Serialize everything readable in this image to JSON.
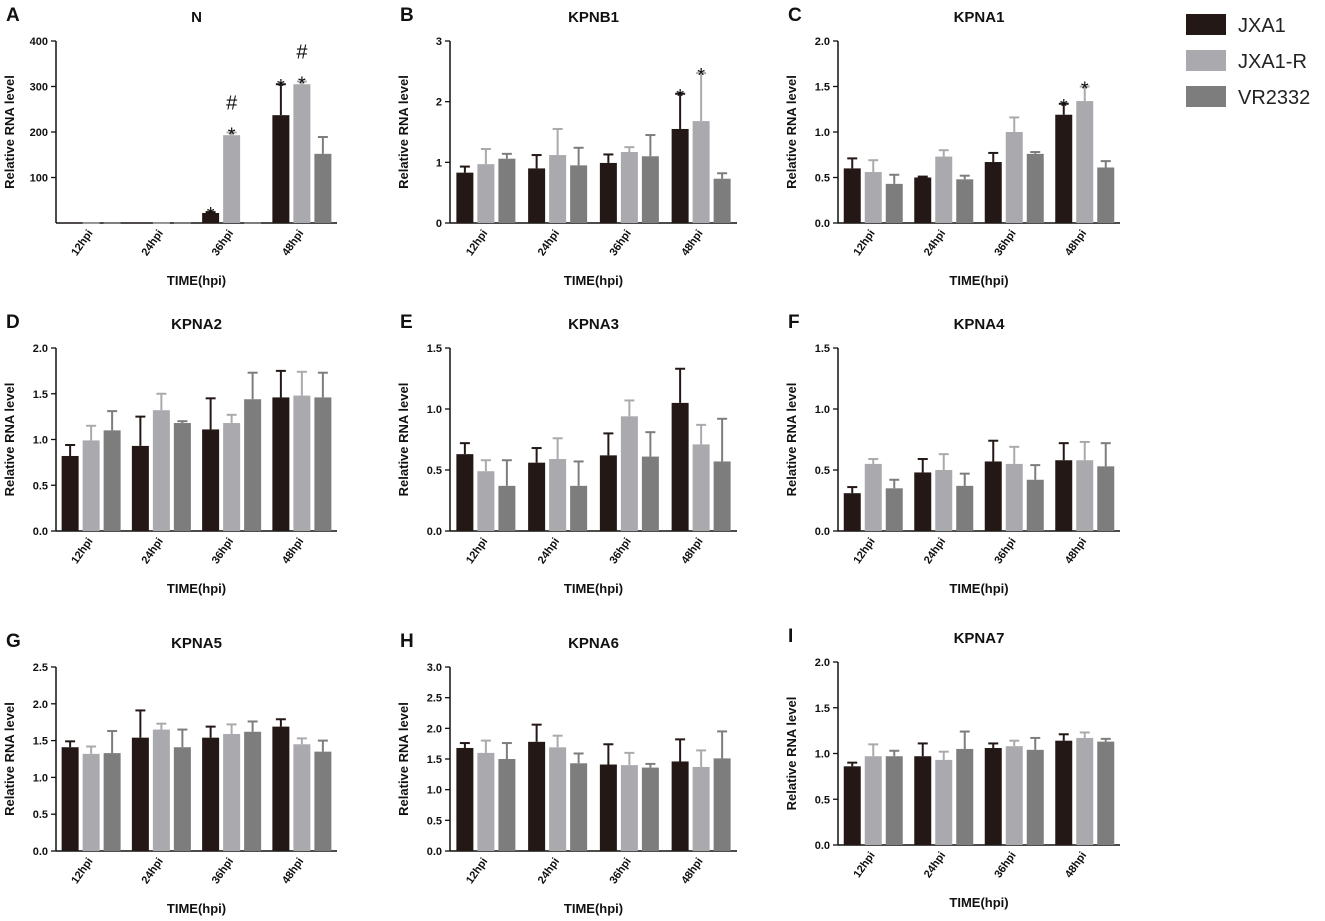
{
  "legend": [
    {
      "name": "JXA1",
      "color": "#231815"
    },
    {
      "name": "JXA1-R",
      "color": "#aaaaae"
    },
    {
      "name": "VR2332",
      "color": "#7d7d7d"
    }
  ],
  "chart_data": [
    {
      "type": "bar",
      "letter": "A",
      "title": "N",
      "xlabel": "TIME(hpi)",
      "ylabel": "Relative RNA level",
      "categories": [
        "12hpi",
        "24hpi",
        "36hpi",
        "48hpi"
      ],
      "ylim": [
        0,
        400
      ],
      "yticks": [
        100,
        200,
        300,
        400
      ],
      "ytick_labels": [
        "100",
        "200",
        "300",
        "400"
      ],
      "series": [
        {
          "name": "JXA1",
          "values": [
            1,
            1,
            22,
            237
          ],
          "errors": [
            0,
            0,
            2,
            68
          ]
        },
        {
          "name": "JXA1-R",
          "values": [
            1,
            1,
            193,
            305
          ],
          "errors": [
            0,
            0,
            6,
            6
          ]
        },
        {
          "name": "VR2332",
          "values": [
            1,
            1,
            1,
            152
          ],
          "errors": [
            0,
            0,
            0,
            37
          ]
        }
      ],
      "annotations": [
        {
          "category": 2,
          "series": 0,
          "marks": [
            "*"
          ]
        },
        {
          "category": 2,
          "series": 1,
          "marks": [
            "*",
            "#"
          ]
        },
        {
          "category": 3,
          "series": 0,
          "marks": [
            "*"
          ]
        },
        {
          "category": 3,
          "series": 1,
          "marks": [
            "*",
            "#"
          ]
        }
      ]
    },
    {
      "type": "bar",
      "letter": "B",
      "title": "KPNB1",
      "xlabel": "TIME(hpi)",
      "ylabel": "Relative RNA level",
      "categories": [
        "12hpi",
        "24hpi",
        "36hpi",
        "48hpi"
      ],
      "ylim": [
        0,
        3
      ],
      "yticks": [
        0,
        1,
        2,
        3
      ],
      "ytick_labels": [
        "0",
        "1",
        "2",
        "3"
      ],
      "series": [
        {
          "name": "JXA1",
          "values": [
            0.83,
            0.9,
            0.99,
            1.55
          ],
          "errors": [
            0.1,
            0.22,
            0.14,
            0.58
          ]
        },
        {
          "name": "JXA1-R",
          "values": [
            0.97,
            1.12,
            1.17,
            1.68
          ],
          "errors": [
            0.25,
            0.43,
            0.08,
            0.79
          ]
        },
        {
          "name": "VR2332",
          "values": [
            1.06,
            0.95,
            1.1,
            0.73
          ],
          "errors": [
            0.08,
            0.29,
            0.35,
            0.09
          ]
        }
      ],
      "annotations": [
        {
          "category": 3,
          "series": 0,
          "marks": [
            "*"
          ]
        },
        {
          "category": 3,
          "series": 1,
          "marks": [
            "*"
          ]
        }
      ]
    },
    {
      "type": "bar",
      "letter": "C",
      "title": "KPNA1",
      "xlabel": "TIME(hpi)",
      "ylabel": "Relative RNA level",
      "categories": [
        "12hpi",
        "24hpi",
        "36hpi",
        "48hpi"
      ],
      "ylim": [
        0,
        2
      ],
      "yticks": [
        0,
        0.5,
        1,
        1.5,
        2
      ],
      "ytick_labels": [
        "0.0",
        "0.5",
        "1.0",
        "1.5",
        "2.0"
      ],
      "series": [
        {
          "name": "JXA1",
          "values": [
            0.6,
            0.5,
            0.67,
            1.19
          ],
          "errors": [
            0.11,
            0.01,
            0.1,
            0.12
          ]
        },
        {
          "name": "JXA1-R",
          "values": [
            0.56,
            0.73,
            1.0,
            1.34
          ],
          "errors": [
            0.13,
            0.07,
            0.16,
            0.16
          ]
        },
        {
          "name": "VR2332",
          "values": [
            0.43,
            0.48,
            0.76,
            0.61
          ],
          "errors": [
            0.1,
            0.04,
            0.02,
            0.07
          ]
        }
      ],
      "annotations": [
        {
          "category": 3,
          "series": 0,
          "marks": [
            "*"
          ]
        },
        {
          "category": 3,
          "series": 1,
          "marks": [
            "*"
          ]
        }
      ]
    },
    {
      "type": "bar",
      "letter": "D",
      "title": "KPNA2",
      "xlabel": "TIME(hpi)",
      "ylabel": "Relative RNA level",
      "categories": [
        "12hpi",
        "24hpi",
        "36hpi",
        "48hpi"
      ],
      "ylim": [
        0,
        2
      ],
      "yticks": [
        0,
        0.5,
        1,
        1.5,
        2
      ],
      "ytick_labels": [
        "0.0",
        "0.5",
        "1.0",
        "1.5",
        "2.0"
      ],
      "series": [
        {
          "name": "JXA1",
          "values": [
            0.82,
            0.93,
            1.11,
            1.46
          ],
          "errors": [
            0.12,
            0.32,
            0.34,
            0.29
          ]
        },
        {
          "name": "JXA1-R",
          "values": [
            0.99,
            1.32,
            1.18,
            1.48
          ],
          "errors": [
            0.16,
            0.18,
            0.09,
            0.26
          ]
        },
        {
          "name": "VR2332",
          "values": [
            1.1,
            1.18,
            1.44,
            1.46
          ],
          "errors": [
            0.21,
            0.02,
            0.29,
            0.27
          ]
        }
      ],
      "annotations": []
    },
    {
      "type": "bar",
      "letter": "E",
      "title": "KPNA3",
      "xlabel": "TIME(hpi)",
      "ylabel": "Relative RNA level",
      "categories": [
        "12hpi",
        "24hpi",
        "36hpi",
        "48hpi"
      ],
      "ylim": [
        0,
        1.5
      ],
      "yticks": [
        0,
        0.5,
        1,
        1.5
      ],
      "ytick_labels": [
        "0.0",
        "0.5",
        "1.0",
        "1.5"
      ],
      "series": [
        {
          "name": "JXA1",
          "values": [
            0.63,
            0.56,
            0.62,
            1.05
          ],
          "errors": [
            0.09,
            0.12,
            0.18,
            0.28
          ]
        },
        {
          "name": "JXA1-R",
          "values": [
            0.49,
            0.59,
            0.94,
            0.71
          ],
          "errors": [
            0.09,
            0.17,
            0.13,
            0.16
          ]
        },
        {
          "name": "VR2332",
          "values": [
            0.37,
            0.37,
            0.61,
            0.57
          ],
          "errors": [
            0.21,
            0.2,
            0.2,
            0.35
          ]
        }
      ],
      "annotations": []
    },
    {
      "type": "bar",
      "letter": "F",
      "title": "KPNA4",
      "xlabel": "TIME(hpi)",
      "ylabel": "Relative RNA level",
      "categories": [
        "12hpi",
        "24hpi",
        "36hpi",
        "48hpi"
      ],
      "ylim": [
        0,
        1.5
      ],
      "yticks": [
        0,
        0.5,
        1,
        1.5
      ],
      "ytick_labels": [
        "0.0",
        "0.5",
        "1.0",
        "1.5"
      ],
      "series": [
        {
          "name": "JXA1",
          "values": [
            0.31,
            0.48,
            0.57,
            0.58
          ],
          "errors": [
            0.05,
            0.11,
            0.17,
            0.14
          ]
        },
        {
          "name": "JXA1-R",
          "values": [
            0.55,
            0.5,
            0.55,
            0.58
          ],
          "errors": [
            0.04,
            0.13,
            0.14,
            0.15
          ]
        },
        {
          "name": "VR2332",
          "values": [
            0.35,
            0.37,
            0.42,
            0.53
          ],
          "errors": [
            0.07,
            0.1,
            0.12,
            0.19
          ]
        }
      ],
      "annotations": []
    },
    {
      "type": "bar",
      "letter": "G",
      "title": "KPNA5",
      "xlabel": "TIME(hpi)",
      "ylabel": "Relative RNA level",
      "categories": [
        "12hpi",
        "24hpi",
        "36hpi",
        "48hpi"
      ],
      "ylim": [
        0,
        2.5
      ],
      "yticks": [
        0,
        0.5,
        1,
        1.5,
        2,
        2.5
      ],
      "ytick_labels": [
        "0.0",
        "0.5",
        "1.0",
        "1.5",
        "2.0",
        "2.5"
      ],
      "series": [
        {
          "name": "JXA1",
          "values": [
            1.41,
            1.54,
            1.54,
            1.69
          ],
          "errors": [
            0.08,
            0.37,
            0.15,
            0.1
          ]
        },
        {
          "name": "JXA1-R",
          "values": [
            1.32,
            1.65,
            1.59,
            1.45
          ],
          "errors": [
            0.1,
            0.08,
            0.13,
            0.08
          ]
        },
        {
          "name": "VR2332",
          "values": [
            1.33,
            1.41,
            1.62,
            1.35
          ],
          "errors": [
            0.3,
            0.24,
            0.14,
            0.15
          ]
        }
      ],
      "annotations": []
    },
    {
      "type": "bar",
      "letter": "H",
      "title": "KPNA6",
      "xlabel": "TIME(hpi)",
      "ylabel": "Relative RNA level",
      "categories": [
        "12hpi",
        "24hpi",
        "36hpi",
        "48hpi"
      ],
      "ylim": [
        0,
        3
      ],
      "yticks": [
        0,
        0.5,
        1,
        1.5,
        2,
        2.5,
        3
      ],
      "ytick_labels": [
        "0.0",
        "0.5",
        "1.0",
        "1.5",
        "2.0",
        "2.5",
        "3.0"
      ],
      "series": [
        {
          "name": "JXA1",
          "values": [
            1.68,
            1.78,
            1.41,
            1.46
          ],
          "errors": [
            0.08,
            0.28,
            0.33,
            0.36
          ]
        },
        {
          "name": "JXA1-R",
          "values": [
            1.6,
            1.69,
            1.4,
            1.37
          ],
          "errors": [
            0.2,
            0.19,
            0.2,
            0.27
          ]
        },
        {
          "name": "VR2332",
          "values": [
            1.5,
            1.43,
            1.36,
            1.51
          ],
          "errors": [
            0.26,
            0.16,
            0.06,
            0.44
          ]
        }
      ],
      "annotations": []
    },
    {
      "type": "bar",
      "letter": "I",
      "title": "KPNA7",
      "xlabel": "TIME(hpi)",
      "ylabel": "Relative RNA level",
      "categories": [
        "12hpi",
        "24hpi",
        "36hpi",
        "48hpi"
      ],
      "ylim": [
        0,
        2
      ],
      "yticks": [
        0,
        0.5,
        1,
        1.5,
        2
      ],
      "ytick_labels": [
        "0.0",
        "0.5",
        "1.0",
        "1.5",
        "2.0"
      ],
      "series": [
        {
          "name": "JXA1",
          "values": [
            0.86,
            0.97,
            1.06,
            1.14
          ],
          "errors": [
            0.04,
            0.14,
            0.05,
            0.07
          ]
        },
        {
          "name": "JXA1-R",
          "values": [
            0.97,
            0.93,
            1.08,
            1.17
          ],
          "errors": [
            0.13,
            0.09,
            0.06,
            0.06
          ]
        },
        {
          "name": "VR2332",
          "values": [
            0.97,
            1.05,
            1.04,
            1.13
          ],
          "errors": [
            0.06,
            0.19,
            0.13,
            0.03
          ]
        }
      ],
      "annotations": []
    }
  ]
}
